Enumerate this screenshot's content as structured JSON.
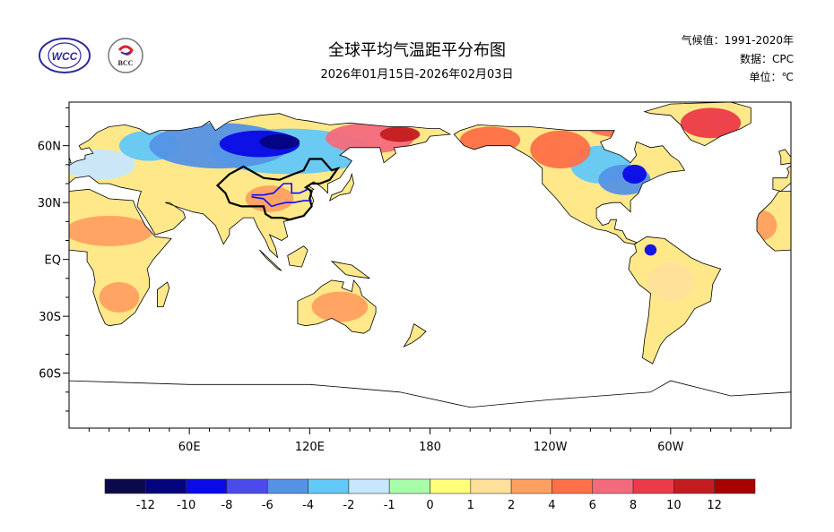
{
  "header": {
    "title": "全球平均气温距平分布图",
    "date_range": "2026年01月15日-2026年02月03日",
    "climatology": "气候值：1991-2020年",
    "data_source": "数据：CPC",
    "unit": "单位：℃",
    "logos": [
      {
        "name": "WCC logo",
        "text": "WCC"
      },
      {
        "name": "BCC logo",
        "text": "BCC"
      }
    ]
  },
  "map": {
    "lon_range": [
      0,
      360
    ],
    "lat_range": [
      -89,
      83
    ],
    "lat_labels": [
      {
        "lat": 60,
        "label": "60N"
      },
      {
        "lat": 30,
        "label": "30N"
      },
      {
        "lat": 0,
        "label": "EQ"
      },
      {
        "lat": -30,
        "label": "30S"
      },
      {
        "lat": -60,
        "label": "60S"
      }
    ],
    "lon_labels": [
      {
        "lon": 60,
        "label": "60E"
      },
      {
        "lon": 120,
        "label": "120E"
      },
      {
        "lon": 180,
        "label": "180"
      },
      {
        "lon": 240,
        "label": "120W"
      },
      {
        "lon": 300,
        "label": "60W"
      }
    ],
    "anomaly_regions": [
      {
        "lon": 75,
        "lat": 60,
        "rlon": 35,
        "rlat": 12,
        "value": -5
      },
      {
        "lon": 110,
        "lat": 57,
        "rlon": 40,
        "rlat": 12,
        "value": -3
      },
      {
        "lon": 95,
        "lat": 61,
        "rlon": 20,
        "rlat": 7,
        "value": -9
      },
      {
        "lon": 105,
        "lat": 62,
        "rlon": 10,
        "rlat": 4,
        "value": -11
      },
      {
        "lon": 40,
        "lat": 60,
        "rlon": 15,
        "rlat": 8,
        "value": -3
      },
      {
        "lon": 15,
        "lat": 50,
        "rlon": 18,
        "rlat": 8,
        "value": -1.5
      },
      {
        "lon": 150,
        "lat": 64,
        "rlon": 22,
        "rlat": 8,
        "value": 7
      },
      {
        "lon": 165,
        "lat": 66,
        "rlon": 10,
        "rlat": 4,
        "value": 11
      },
      {
        "lon": 210,
        "lat": 63,
        "rlon": 15,
        "rlat": 7,
        "value": 5
      },
      {
        "lon": 245,
        "lat": 58,
        "rlon": 15,
        "rlat": 10,
        "value": 4.5
      },
      {
        "lon": 280,
        "lat": 70,
        "rlon": 22,
        "rlat": 6,
        "value": 5
      },
      {
        "lon": 320,
        "lat": 72,
        "rlon": 15,
        "rlat": 8,
        "value": 8
      },
      {
        "lon": 325,
        "lat": 75,
        "rlon": 6,
        "rlat": 2,
        "value": -2
      },
      {
        "lon": 265,
        "lat": 50,
        "rlon": 15,
        "rlat": 10,
        "value": -3
      },
      {
        "lon": 277,
        "lat": 42,
        "rlon": 13,
        "rlat": 8,
        "value": -6
      },
      {
        "lon": 282,
        "lat": 45,
        "rlon": 6,
        "rlat": 5,
        "value": -9
      },
      {
        "lon": 100,
        "lat": 32,
        "rlon": 12,
        "rlat": 7,
        "value": 3
      },
      {
        "lon": 20,
        "lat": 15,
        "rlon": 22,
        "rlat": 8,
        "value": 2
      },
      {
        "lon": 25,
        "lat": -20,
        "rlon": 10,
        "rlat": 8,
        "value": 2
      },
      {
        "lon": 135,
        "lat": -25,
        "rlon": 14,
        "rlat": 8,
        "value": 2
      },
      {
        "lon": 300,
        "lat": -12,
        "rlon": 12,
        "rlat": 10,
        "value": 1.5
      },
      {
        "lon": 290,
        "lat": 5,
        "rlon": 3,
        "rlat": 3,
        "value": -9
      },
      {
        "lon": 345,
        "lat": 18,
        "rlon": 8,
        "rlat": 8,
        "value": 3
      }
    ]
  },
  "colorbar": {
    "colors": [
      "#0a0a4a",
      "#04047e",
      "#0a0ae6",
      "#4b4beb",
      "#5592e5",
      "#62c8f8",
      "#c8e6fd",
      "#a8fea8",
      "#ffff78",
      "#ffe09a",
      "#ffa060",
      "#ff7048",
      "#f46a7c",
      "#ec3a48",
      "#c41c20",
      "#a80000"
    ],
    "levels": [
      -12,
      -10,
      -8,
      -6,
      -4,
      -2,
      -1,
      0,
      1,
      2,
      4,
      6,
      8,
      10,
      12
    ],
    "labels": [
      "-12",
      "-10",
      "-8",
      "-6",
      "-4",
      "-2",
      "-1",
      "0",
      "1",
      "2",
      "4",
      "6",
      "8",
      "10",
      "12"
    ]
  }
}
